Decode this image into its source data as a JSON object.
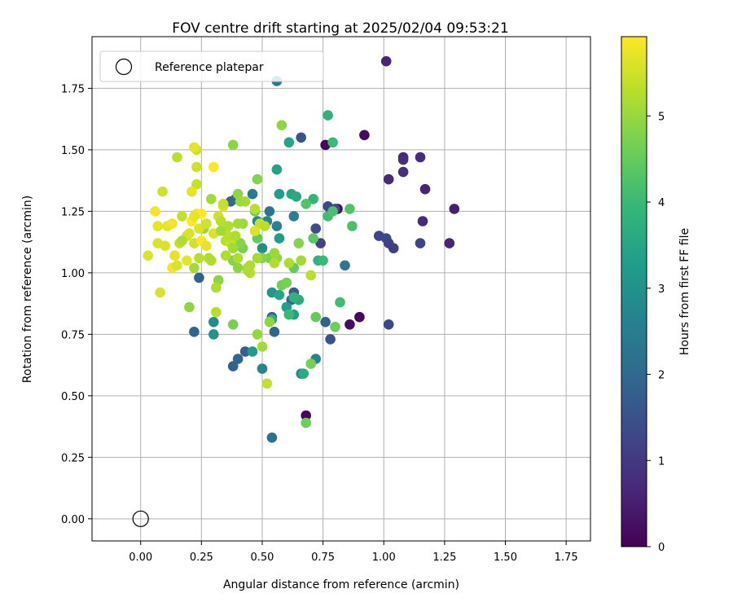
{
  "chart_data": {
    "type": "scatter",
    "title": "FOV centre drift starting at 2025/02/04 09:53:21",
    "xlabel": "Angular distance from reference (arcmin)",
    "ylabel": "Rotation from reference (arcmin)",
    "xlim": [
      -0.2,
      1.85
    ],
    "ylim": [
      -0.09,
      1.96
    ],
    "xticks": [
      0.0,
      0.25,
      0.5,
      0.75,
      1.0,
      1.25,
      1.5,
      1.75
    ],
    "xtick_labels": [
      "0.00",
      "0.25",
      "0.50",
      "0.75",
      "1.00",
      "1.25",
      "1.50",
      "1.75"
    ],
    "yticks": [
      0.0,
      0.25,
      0.5,
      0.75,
      1.0,
      1.25,
      1.5,
      1.75
    ],
    "ytick_labels": [
      "0.00",
      "0.25",
      "0.50",
      "0.75",
      "1.00",
      "1.25",
      "1.50",
      "1.75"
    ],
    "grid": true,
    "legend": {
      "position": "top-left",
      "entries": [
        "Reference platepar"
      ]
    },
    "reference_point": {
      "x": 0.0,
      "y": 0.0
    },
    "colorbar": {
      "label": "Hours from first FF file",
      "range": [
        0,
        5.92
      ],
      "ticks": [
        0,
        1,
        2,
        3,
        4,
        5
      ],
      "colormap": "viridis",
      "colors": [
        "#440154",
        "#482878",
        "#3e4989",
        "#31688e",
        "#26828e",
        "#1f9e89",
        "#35b779",
        "#6ece58",
        "#b5de2b",
        "#fde725"
      ]
    },
    "points": [
      [
        0.76,
        1.52,
        0.1
      ],
      [
        0.92,
        1.56,
        0.15
      ],
      [
        0.81,
        1.26,
        0.2
      ],
      [
        0.68,
        0.42,
        0.1
      ],
      [
        0.86,
        0.79,
        0.2
      ],
      [
        0.9,
        0.82,
        0.15
      ],
      [
        1.01,
        1.86,
        0.6
      ],
      [
        1.08,
        1.47,
        0.7
      ],
      [
        1.08,
        1.46,
        0.75
      ],
      [
        1.08,
        1.41,
        0.8
      ],
      [
        1.15,
        1.47,
        0.75
      ],
      [
        1.02,
        1.38,
        0.65
      ],
      [
        1.17,
        1.34,
        0.6
      ],
      [
        1.29,
        1.26,
        0.5
      ],
      [
        1.16,
        1.21,
        0.7
      ],
      [
        1.27,
        1.12,
        0.6
      ],
      [
        0.98,
        1.15,
        1.2
      ],
      [
        1.01,
        1.14,
        1.3
      ],
      [
        1.02,
        1.12,
        1.15
      ],
      [
        1.04,
        1.1,
        1.1
      ],
      [
        1.15,
        1.12,
        1.2
      ],
      [
        1.02,
        0.79,
        1.3
      ],
      [
        0.78,
        1.26,
        1.1
      ],
      [
        0.77,
        1.27,
        1.3
      ],
      [
        0.8,
        1.26,
        1.25
      ],
      [
        0.74,
        1.12,
        1.2
      ],
      [
        0.72,
        1.18,
        1.4
      ],
      [
        0.78,
        0.73,
        1.5
      ],
      [
        0.66,
        1.55,
        1.6
      ],
      [
        0.76,
        0.8,
        1.8
      ],
      [
        0.63,
        0.92,
        1.7
      ],
      [
        0.62,
        0.89,
        1.9
      ],
      [
        0.55,
        0.76,
        1.9
      ],
      [
        0.54,
        0.82,
        1.85
      ],
      [
        0.43,
        0.68,
        1.8
      ],
      [
        0.4,
        0.65,
        1.95
      ],
      [
        0.38,
        0.62,
        1.8
      ],
      [
        0.22,
        0.76,
        1.9
      ],
      [
        0.24,
        0.98,
        1.8
      ],
      [
        0.37,
        1.29,
        1.9
      ],
      [
        0.39,
        1.3,
        2.1
      ],
      [
        0.54,
        0.33,
        2.2
      ],
      [
        0.56,
        1.78,
        2.4
      ],
      [
        0.52,
        1.21,
        2.7
      ],
      [
        0.56,
        1.19,
        2.6
      ],
      [
        0.53,
        1.25,
        2.3
      ],
      [
        0.46,
        1.32,
        2.4
      ],
      [
        0.48,
        1.21,
        2.8
      ],
      [
        0.5,
        1.1,
        2.9
      ],
      [
        0.63,
        1.23,
        2.6
      ],
      [
        0.84,
        1.03,
        2.4
      ],
      [
        0.5,
        0.61,
        2.7
      ],
      [
        0.66,
        0.59,
        2.8
      ],
      [
        0.72,
        0.65,
        2.7
      ],
      [
        0.3,
        0.8,
        2.9
      ],
      [
        0.3,
        0.75,
        3.0
      ],
      [
        0.46,
        0.68,
        3.2
      ],
      [
        0.54,
        0.92,
        3.1
      ],
      [
        0.6,
        0.86,
        3.3
      ],
      [
        0.63,
        0.83,
        3.4
      ],
      [
        0.57,
        1.14,
        3.3
      ],
      [
        0.56,
        1.42,
        3.4
      ],
      [
        0.57,
        1.32,
        3.3
      ],
      [
        0.62,
        1.32,
        3.5
      ],
      [
        0.64,
        1.31,
        3.6
      ],
      [
        0.61,
        1.53,
        3.5
      ],
      [
        0.65,
        0.89,
        3.6
      ],
      [
        0.54,
        0.81,
        3.7
      ],
      [
        0.57,
        0.91,
        3.5
      ],
      [
        0.67,
        0.59,
        3.6
      ],
      [
        0.63,
        0.9,
        3.8
      ],
      [
        0.77,
        1.64,
        3.8
      ],
      [
        0.79,
        1.53,
        4.0
      ],
      [
        0.73,
        1.05,
        3.8
      ],
      [
        0.75,
        1.05,
        4.0
      ],
      [
        0.71,
        1.3,
        3.9
      ],
      [
        0.77,
        1.23,
        4.1
      ],
      [
        0.79,
        1.25,
        4.2
      ],
      [
        0.86,
        1.26,
        4.3
      ],
      [
        0.82,
        0.88,
        4.1
      ],
      [
        0.61,
        0.83,
        4.0
      ],
      [
        0.58,
        0.95,
        4.6
      ],
      [
        0.6,
        0.96,
        4.7
      ],
      [
        0.63,
        1.02,
        4.5
      ],
      [
        0.87,
        1.19,
        4.2
      ],
      [
        0.8,
        0.78,
        4.6
      ],
      [
        0.72,
        0.82,
        4.5
      ],
      [
        0.7,
        0.63,
        4.7
      ],
      [
        0.68,
        0.39,
        4.6
      ],
      [
        0.71,
        1.14,
        4.4
      ],
      [
        0.65,
        1.12,
        4.8
      ],
      [
        0.68,
        1.28,
        4.3
      ],
      [
        0.58,
        1.6,
        4.9
      ],
      [
        0.53,
        1.06,
        4.7
      ],
      [
        0.56,
        1.06,
        4.9
      ],
      [
        0.55,
        1.08,
        5.0
      ],
      [
        0.5,
        1.06,
        4.8
      ],
      [
        0.48,
        1.14,
        4.5
      ],
      [
        0.47,
        1.25,
        4.6
      ],
      [
        0.48,
        1.38,
        4.8
      ],
      [
        0.42,
        1.1,
        4.7
      ],
      [
        0.41,
        1.12,
        4.8
      ],
      [
        0.44,
        1.02,
        5.0
      ],
      [
        0.4,
        1.02,
        4.9
      ],
      [
        0.38,
        1.05,
        4.8
      ],
      [
        0.38,
        0.79,
        4.7
      ],
      [
        0.48,
        0.75,
        5.0
      ],
      [
        0.5,
        0.7,
        5.1
      ],
      [
        0.53,
        0.8,
        4.9
      ],
      [
        0.52,
        0.55,
        5.4
      ],
      [
        0.47,
        1.26,
        5.3
      ],
      [
        0.49,
        1.2,
        5.4
      ],
      [
        0.38,
        1.52,
        4.9
      ],
      [
        0.4,
        1.32,
        4.9
      ],
      [
        0.42,
        1.2,
        5.0
      ],
      [
        0.32,
        0.97,
        4.9
      ],
      [
        0.31,
        0.94,
        5.2
      ],
      [
        0.31,
        0.84,
        5.3
      ],
      [
        0.2,
        0.86,
        4.9
      ],
      [
        0.26,
        1.18,
        5.0
      ],
      [
        0.29,
        1.3,
        5.1
      ],
      [
        0.23,
        1.36,
        5.4
      ],
      [
        0.23,
        1.43,
        5.5
      ],
      [
        0.23,
        1.5,
        5.5
      ],
      [
        0.22,
        1.51,
        5.7
      ],
      [
        0.15,
        1.47,
        5.3
      ],
      [
        0.3,
        1.43,
        5.9
      ],
      [
        0.21,
        1.33,
        5.7
      ],
      [
        0.17,
        1.23,
        5.4
      ],
      [
        0.09,
        1.33,
        5.5
      ],
      [
        0.06,
        1.25,
        5.8
      ],
      [
        0.07,
        1.19,
        5.7
      ],
      [
        0.03,
        1.07,
        5.6
      ],
      [
        0.07,
        1.12,
        5.6
      ],
      [
        0.11,
        1.19,
        5.7
      ],
      [
        0.13,
        1.2,
        5.8
      ],
      [
        0.1,
        1.11,
        5.6
      ],
      [
        0.14,
        1.07,
        5.7
      ],
      [
        0.16,
        1.12,
        5.4
      ],
      [
        0.13,
        1.02,
        5.8
      ],
      [
        0.15,
        1.03,
        5.6
      ],
      [
        0.19,
        1.05,
        5.7
      ],
      [
        0.19,
        1.15,
        5.5
      ],
      [
        0.2,
        1.16,
        5.6
      ],
      [
        0.21,
        1.21,
        5.9
      ],
      [
        0.23,
        1.24,
        5.8
      ],
      [
        0.25,
        1.24,
        5.9
      ],
      [
        0.22,
        1.23,
        5.7
      ],
      [
        0.24,
        1.18,
        5.6
      ],
      [
        0.22,
        1.12,
        5.5
      ],
      [
        0.25,
        1.13,
        5.9
      ],
      [
        0.27,
        1.11,
        5.7
      ],
      [
        0.27,
        1.2,
        5.5
      ],
      [
        0.3,
        1.16,
        5.6
      ],
      [
        0.32,
        1.23,
        5.5
      ],
      [
        0.33,
        1.21,
        5.3
      ],
      [
        0.34,
        1.27,
        5.6
      ],
      [
        0.36,
        1.19,
        5.2
      ],
      [
        0.35,
        1.13,
        5.3
      ],
      [
        0.35,
        1.07,
        5.2
      ],
      [
        0.37,
        1.12,
        5.4
      ],
      [
        0.36,
        1.15,
        5.3
      ],
      [
        0.39,
        1.15,
        5.2
      ],
      [
        0.4,
        1.2,
        5.1
      ],
      [
        0.41,
        1.29,
        5.0
      ],
      [
        0.43,
        1.29,
        5.1
      ],
      [
        0.45,
        1.03,
        5.2
      ],
      [
        0.47,
        1.17,
        5.6
      ],
      [
        0.51,
        1.19,
        5.3
      ],
      [
        0.61,
        1.04,
        5.2
      ],
      [
        0.66,
        1.05,
        5.1
      ],
      [
        0.7,
        0.99,
        5.3
      ],
      [
        0.55,
        1.04,
        5.2
      ],
      [
        0.48,
        1.06,
        5.1
      ],
      [
        0.45,
        1.0,
        5.3
      ],
      [
        0.44,
        1.01,
        5.2
      ],
      [
        0.4,
        1.06,
        5.2
      ],
      [
        0.38,
        1.1,
        5.1
      ],
      [
        0.29,
        1.05,
        5.2
      ],
      [
        0.28,
        1.06,
        5.2
      ],
      [
        0.24,
        1.06,
        5.3
      ],
      [
        0.22,
        1.02,
        5.1
      ],
      [
        0.17,
        1.13,
        5.2
      ],
      [
        0.08,
        0.92,
        5.6
      ],
      [
        0.33,
        1.17,
        5.1
      ],
      [
        0.34,
        1.28,
        5.4
      ]
    ]
  }
}
